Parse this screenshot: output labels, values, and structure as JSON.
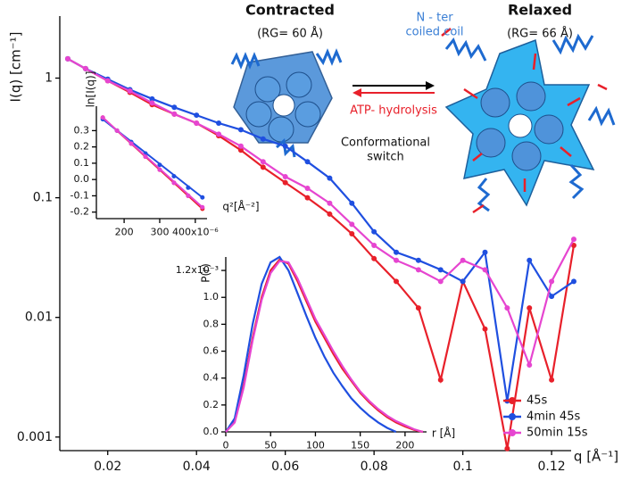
{
  "chart_data": [
    {
      "type": "line",
      "markers": true,
      "ylog": true,
      "xlabel": "q [Å⁻¹]",
      "ylabel": "I(q) [cm⁻¹]",
      "x": [
        0.011,
        0.015,
        0.02,
        0.025,
        0.03,
        0.035,
        0.04,
        0.045,
        0.05,
        0.055,
        0.06,
        0.065,
        0.07,
        0.075,
        0.08,
        0.085,
        0.09,
        0.095,
        0.1,
        0.105,
        0.11,
        0.115,
        0.12,
        0.125
      ],
      "series": [
        {
          "name": "45s",
          "color": "#e8202a",
          "values": [
            1.45,
            1.2,
            0.95,
            0.76,
            0.6,
            0.5,
            0.42,
            0.33,
            0.25,
            0.18,
            0.134,
            0.1,
            0.073,
            0.05,
            0.031,
            0.02,
            0.012,
            0.003,
            0.02,
            0.008,
            0.0008,
            0.012,
            0.003,
            0.04
          ]
        },
        {
          "name": "4min 45s",
          "color": "#1f4fe0",
          "values": [
            1.45,
            1.2,
            0.98,
            0.8,
            0.67,
            0.57,
            0.49,
            0.42,
            0.37,
            0.31,
            0.27,
            0.2,
            0.146,
            0.09,
            0.052,
            0.035,
            0.03,
            0.025,
            0.02,
            0.035,
            0.002,
            0.03,
            0.015,
            0.02
          ]
        },
        {
          "name": "50min 15s",
          "color": "#e645d0",
          "values": [
            1.45,
            1.2,
            0.95,
            0.78,
            0.62,
            0.5,
            0.42,
            0.34,
            0.27,
            0.2,
            0.15,
            0.12,
            0.09,
            0.06,
            0.04,
            0.03,
            0.025,
            0.02,
            0.03,
            0.025,
            0.012,
            0.004,
            0.02,
            0.045
          ]
        }
      ],
      "xlim": [
        0.0092,
        0.1244
      ],
      "xticks": [
        0.02,
        0.04,
        0.06,
        0.08,
        0.1,
        0.12
      ],
      "ylim": [
        0.00077,
        3.3
      ],
      "yticks": [
        0.001,
        0.01,
        0.1,
        1
      ],
      "legend": "lower right"
    },
    {
      "type": "scatter",
      "markers": true,
      "xlabel": "q²[Å⁻²]",
      "ylabel": "ln[I(q)]",
      "x": [
        140,
        180,
        220,
        260,
        300,
        340,
        380,
        420
      ],
      "series": [
        {
          "name": "45s",
          "color": "#e8202a",
          "values": [
            0.38,
            0.3,
            0.22,
            0.14,
            0.06,
            -0.02,
            -0.1,
            -0.18
          ]
        },
        {
          "name": "4min 45s",
          "color": "#1f4fe0",
          "values": [
            0.37,
            0.3,
            0.23,
            0.16,
            0.09,
            0.02,
            -0.05,
            -0.11
          ]
        },
        {
          "name": "50min 15s",
          "color": "#e645d0",
          "values": [
            0.38,
            0.3,
            0.22,
            0.14,
            0.06,
            -0.02,
            -0.1,
            -0.17
          ]
        }
      ],
      "xlim": [
        122,
        433
      ],
      "xticks": [
        200,
        300,
        {
          "value": 400,
          "label": "400x10⁻⁶"
        }
      ],
      "ylim": [
        -0.24,
        0.45
      ],
      "yticks": [
        -0.2,
        -0.1,
        {
          "value": 0,
          "label": "0.0"
        },
        0.1,
        0.2,
        0.3
      ]
    },
    {
      "type": "line",
      "markers": false,
      "xlabel": "r [Å]",
      "ylabel": "P(r)",
      "x": [
        0,
        10,
        20,
        30,
        40,
        50,
        60,
        70,
        80,
        90,
        100,
        110,
        120,
        130,
        140,
        150,
        160,
        170,
        180,
        190,
        200,
        210,
        220
      ],
      "series": [
        {
          "name": "45s",
          "color": "#e8202a",
          "values": [
            0,
            0.08,
            0.35,
            0.7,
            1.0,
            1.2,
            1.28,
            1.25,
            1.12,
            0.97,
            0.82,
            0.7,
            0.58,
            0.47,
            0.38,
            0.29,
            0.22,
            0.16,
            0.11,
            0.07,
            0.04,
            0.015,
            0
          ]
        },
        {
          "name": "4min 45s",
          "color": "#1f4fe0",
          "values": [
            0,
            0.1,
            0.42,
            0.8,
            1.1,
            1.26,
            1.3,
            1.2,
            1.03,
            0.86,
            0.7,
            0.56,
            0.44,
            0.34,
            0.25,
            0.18,
            0.12,
            0.07,
            0.03,
            0,
            null,
            null,
            null
          ]
        },
        {
          "name": "50min 15s",
          "color": "#e645d0",
          "values": [
            0,
            0.07,
            0.33,
            0.68,
            0.98,
            1.18,
            1.27,
            1.26,
            1.14,
            0.99,
            0.84,
            0.72,
            0.6,
            0.49,
            0.39,
            0.3,
            0.23,
            0.17,
            0.12,
            0.08,
            0.05,
            0.02,
            0
          ]
        }
      ],
      "xlim": [
        0,
        224
      ],
      "xticks": [
        0,
        50,
        100,
        150,
        200
      ],
      "ylim": [
        0,
        1.3
      ],
      "yticks": [
        {
          "value": 0,
          "label": "0.0"
        },
        0.2,
        0.4,
        0.6,
        0.8,
        {
          "value": 1,
          "label": "1.0"
        },
        {
          "value": 1.2,
          "label": "1.2x10⁻³"
        }
      ]
    }
  ],
  "diagram": {
    "left_title": "Contracted",
    "left_rg": "(RG= 60 Å)",
    "right_title": "Relaxed",
    "right_rg": "(RG= 66 Å)",
    "coil_label": [
      "N - ter",
      "coiled coil"
    ],
    "reverse_label": "ATP- hydrolysis",
    "switch_label": [
      "Conformational",
      "switch"
    ]
  }
}
